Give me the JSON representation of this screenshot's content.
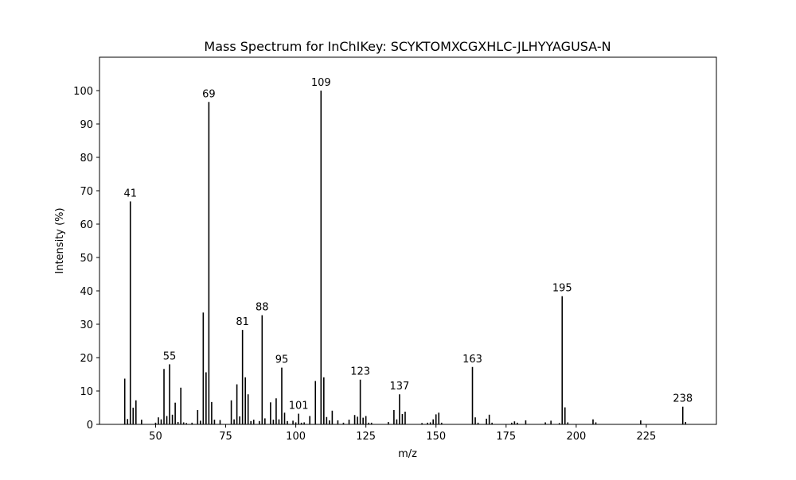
{
  "chart_data": {
    "type": "bar",
    "title": "Mass Spectrum for InChIKey: SCYKTOMXCGXHLC-JLHYYAGUSA-N",
    "xlabel": "m/z",
    "ylabel": "Intensity (%)",
    "xlim": [
      30,
      250
    ],
    "ylim": [
      0,
      110
    ],
    "xticks": [
      50,
      75,
      100,
      125,
      150,
      175,
      200,
      225
    ],
    "yticks": [
      0,
      10,
      20,
      30,
      40,
      50,
      60,
      70,
      80,
      90,
      100
    ],
    "grid": false,
    "bar_color": "#000000",
    "peaks": [
      {
        "mz": 39,
        "intensity": 13.7
      },
      {
        "mz": 40,
        "intensity": 1.6
      },
      {
        "mz": 41,
        "intensity": 66.8,
        "label": "41"
      },
      {
        "mz": 42,
        "intensity": 5.0
      },
      {
        "mz": 43,
        "intensity": 7.2
      },
      {
        "mz": 45,
        "intensity": 1.4
      },
      {
        "mz": 50,
        "intensity": 0.5
      },
      {
        "mz": 51,
        "intensity": 2.1
      },
      {
        "mz": 52,
        "intensity": 1.5
      },
      {
        "mz": 53,
        "intensity": 16.6
      },
      {
        "mz": 54,
        "intensity": 2.5
      },
      {
        "mz": 55,
        "intensity": 18.0,
        "label": "55"
      },
      {
        "mz": 56,
        "intensity": 2.9
      },
      {
        "mz": 57,
        "intensity": 6.5
      },
      {
        "mz": 58,
        "intensity": 0.7
      },
      {
        "mz": 59,
        "intensity": 11.0
      },
      {
        "mz": 60,
        "intensity": 0.6
      },
      {
        "mz": 61,
        "intensity": 0.4
      },
      {
        "mz": 63,
        "intensity": 0.5
      },
      {
        "mz": 65,
        "intensity": 4.3
      },
      {
        "mz": 66,
        "intensity": 1.1
      },
      {
        "mz": 67,
        "intensity": 33.5
      },
      {
        "mz": 68,
        "intensity": 15.6
      },
      {
        "mz": 69,
        "intensity": 96.6,
        "label": "69"
      },
      {
        "mz": 70,
        "intensity": 6.7
      },
      {
        "mz": 71,
        "intensity": 1.4
      },
      {
        "mz": 73,
        "intensity": 1.3
      },
      {
        "mz": 77,
        "intensity": 7.2
      },
      {
        "mz": 78,
        "intensity": 1.5
      },
      {
        "mz": 79,
        "intensity": 12.0
      },
      {
        "mz": 80,
        "intensity": 2.4
      },
      {
        "mz": 81,
        "intensity": 28.3,
        "label": "81"
      },
      {
        "mz": 82,
        "intensity": 14.1
      },
      {
        "mz": 83,
        "intensity": 9.0
      },
      {
        "mz": 84,
        "intensity": 1.0
      },
      {
        "mz": 85,
        "intensity": 1.4
      },
      {
        "mz": 87,
        "intensity": 1.0
      },
      {
        "mz": 88,
        "intensity": 32.7,
        "label": "88"
      },
      {
        "mz": 89,
        "intensity": 1.8
      },
      {
        "mz": 91,
        "intensity": 6.6
      },
      {
        "mz": 92,
        "intensity": 1.4
      },
      {
        "mz": 93,
        "intensity": 7.8
      },
      {
        "mz": 94,
        "intensity": 1.5
      },
      {
        "mz": 95,
        "intensity": 17.0,
        "label": "95"
      },
      {
        "mz": 96,
        "intensity": 3.5
      },
      {
        "mz": 97,
        "intensity": 1.0
      },
      {
        "mz": 99,
        "intensity": 1.1
      },
      {
        "mz": 100,
        "intensity": 0.6
      },
      {
        "mz": 101,
        "intensity": 3.2,
        "label": "101"
      },
      {
        "mz": 102,
        "intensity": 0.5
      },
      {
        "mz": 103,
        "intensity": 0.6
      },
      {
        "mz": 105,
        "intensity": 2.5
      },
      {
        "mz": 107,
        "intensity": 13.0
      },
      {
        "mz": 109,
        "intensity": 100.0,
        "label": "109"
      },
      {
        "mz": 110,
        "intensity": 14.1
      },
      {
        "mz": 111,
        "intensity": 2.2
      },
      {
        "mz": 112,
        "intensity": 1.2
      },
      {
        "mz": 113,
        "intensity": 4.1
      },
      {
        "mz": 115,
        "intensity": 1.2
      },
      {
        "mz": 117,
        "intensity": 0.5
      },
      {
        "mz": 119,
        "intensity": 1.4
      },
      {
        "mz": 121,
        "intensity": 2.8
      },
      {
        "mz": 122,
        "intensity": 2.3
      },
      {
        "mz": 123,
        "intensity": 13.4,
        "label": "123"
      },
      {
        "mz": 124,
        "intensity": 2.0
      },
      {
        "mz": 125,
        "intensity": 2.5
      },
      {
        "mz": 126,
        "intensity": 0.5
      },
      {
        "mz": 127,
        "intensity": 0.5
      },
      {
        "mz": 133,
        "intensity": 0.7
      },
      {
        "mz": 135,
        "intensity": 4.3
      },
      {
        "mz": 136,
        "intensity": 1.5
      },
      {
        "mz": 137,
        "intensity": 9.0,
        "label": "137"
      },
      {
        "mz": 138,
        "intensity": 3.1
      },
      {
        "mz": 139,
        "intensity": 3.8
      },
      {
        "mz": 145,
        "intensity": 0.4
      },
      {
        "mz": 147,
        "intensity": 0.5
      },
      {
        "mz": 148,
        "intensity": 0.6
      },
      {
        "mz": 149,
        "intensity": 1.5
      },
      {
        "mz": 150,
        "intensity": 3.0
      },
      {
        "mz": 151,
        "intensity": 3.5
      },
      {
        "mz": 152,
        "intensity": 0.5
      },
      {
        "mz": 163,
        "intensity": 17.2,
        "label": "163"
      },
      {
        "mz": 164,
        "intensity": 2.1
      },
      {
        "mz": 165,
        "intensity": 0.5
      },
      {
        "mz": 168,
        "intensity": 1.7
      },
      {
        "mz": 169,
        "intensity": 2.9
      },
      {
        "mz": 170,
        "intensity": 0.5
      },
      {
        "mz": 177,
        "intensity": 0.5
      },
      {
        "mz": 178,
        "intensity": 0.9
      },
      {
        "mz": 179,
        "intensity": 0.5
      },
      {
        "mz": 182,
        "intensity": 1.2
      },
      {
        "mz": 189,
        "intensity": 0.6
      },
      {
        "mz": 191,
        "intensity": 1.1
      },
      {
        "mz": 194,
        "intensity": 0.4
      },
      {
        "mz": 195,
        "intensity": 38.4,
        "label": "195"
      },
      {
        "mz": 196,
        "intensity": 5.1
      },
      {
        "mz": 197,
        "intensity": 0.6
      },
      {
        "mz": 206,
        "intensity": 1.5
      },
      {
        "mz": 207,
        "intensity": 0.6
      },
      {
        "mz": 223,
        "intensity": 1.2
      },
      {
        "mz": 238,
        "intensity": 5.3,
        "label": "238"
      },
      {
        "mz": 239,
        "intensity": 0.7
      }
    ]
  }
}
